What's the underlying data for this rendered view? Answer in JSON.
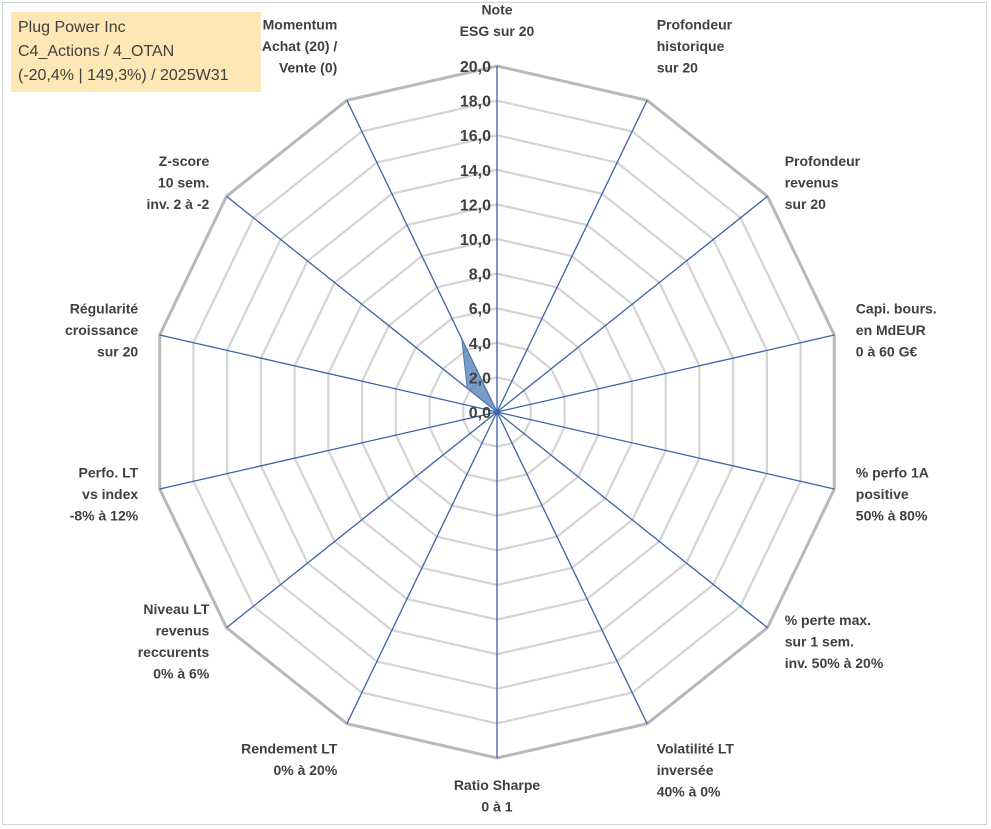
{
  "header_box": {
    "line1": "Plug Power Inc",
    "line2": "C4_Actions / 4_OTAN",
    "line3": "(-20,4% | 149,3%) / 2025W31",
    "background": "#fde7b4"
  },
  "chart_data": {
    "type": "radar",
    "title": "",
    "rmin": 0,
    "rmax": 20,
    "tick_step": 2,
    "tick_labels": [
      "0,0",
      "2,0",
      "4,0",
      "6,0",
      "8,0",
      "10,0",
      "12,0",
      "14,0",
      "16,0",
      "18,0",
      "20,0"
    ],
    "grid": true,
    "axes": [
      [
        "Note",
        "ESG sur 20"
      ],
      [
        "Profondeur",
        "historique",
        "sur 20"
      ],
      [
        "Profondeur",
        "revenus",
        "sur 20"
      ],
      [
        "Capi. bours.",
        "en MdEUR",
        "0 à 60 G€"
      ],
      [
        "% perfo 1A",
        "positive",
        "50% à 80%"
      ],
      [
        "% perte max.",
        "sur 1 sem.",
        "inv. 50% à 20%"
      ],
      [
        "Volatilité LT",
        "inversée",
        "40% à 0%"
      ],
      [
        "Ratio Sharpe",
        "0 à 1"
      ],
      [
        "Rendement LT",
        "0% à 20%"
      ],
      [
        "Niveau LT",
        "revenus",
        "reccurents",
        "0% à 6%"
      ],
      [
        "Perfo. LT",
        "vs index",
        "-8% à 12%"
      ],
      [
        "Régularité",
        "croissance",
        "sur 20"
      ],
      [
        "Z-score",
        "10 sem.",
        "inv. 2 à -2"
      ],
      [
        "Momentum",
        "Achat (20) /",
        "Vente (0)"
      ]
    ],
    "series": [
      {
        "values": [
          0,
          0,
          0,
          0,
          0,
          0,
          0,
          0,
          0,
          0,
          0,
          0,
          2.2,
          4.7
        ],
        "fill": "#4f7bb4",
        "fill_opacity": 0.75
      }
    ],
    "colors": {
      "grid_outer": "#b8b8b8",
      "grid_inner": "#d4d4d4",
      "spoke": "#3a62a8",
      "text": "#404040"
    }
  }
}
